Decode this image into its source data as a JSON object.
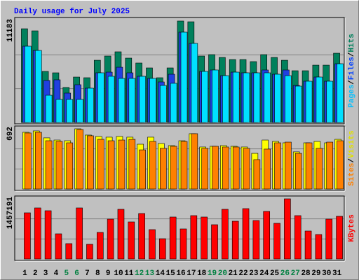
{
  "chart_data": {
    "type": "bar",
    "title": "Daily usage for July 2025",
    "title_color": "#0000ff",
    "categories": [
      "1",
      "2",
      "3",
      "4",
      "5",
      "6",
      "7",
      "8",
      "9",
      "10",
      "11",
      "12",
      "13",
      "14",
      "15",
      "16",
      "17",
      "18",
      "19",
      "20",
      "21",
      "22",
      "23",
      "24",
      "25",
      "26",
      "27",
      "28",
      "29",
      "30",
      "31"
    ],
    "category_colors": [
      "#000000",
      "#000000",
      "#000000",
      "#000000",
      "#008040",
      "#008040",
      "#000000",
      "#000000",
      "#000000",
      "#000000",
      "#000000",
      "#008040",
      "#008040",
      "#000000",
      "#000000",
      "#000000",
      "#000000",
      "#000000",
      "#008040",
      "#008040",
      "#000000",
      "#000000",
      "#000000",
      "#000000",
      "#000000",
      "#008040",
      "#008040",
      "#000000",
      "#000000",
      "#000000",
      "#000000"
    ],
    "separator": "/",
    "panels": [
      {
        "ylim": [
          0,
          11183
        ],
        "yticks": [
          11183
        ],
        "series": [
          {
            "name": "Hits",
            "color": "#00805c",
            "label_color": "#00805c",
            "values": [
              10330,
              10100,
              5630,
              5475,
              3860,
              5010,
              4935,
              6860,
              7325,
              7790,
              7095,
              6555,
              6015,
              4935,
              6015,
              11183,
              11100,
              7325,
              7480,
              7170,
              6940,
              6940,
              6710,
              7480,
              7170,
              6860,
              5705,
              5705,
              6320,
              6320,
              7635
            ]
          },
          {
            "name": "Files",
            "color": "#2040e0",
            "label_color": "#0040ff",
            "values": [
              8405,
              7940,
              4630,
              4705,
              3240,
              4165,
              3780,
              5475,
              5550,
              6090,
              5475,
              5090,
              4860,
              4470,
              5320,
              9950,
              8715,
              5630,
              5785,
              5165,
              5550,
              5475,
              5475,
              5785,
              5320,
              5785,
              4085,
              4550,
              5010,
              4550,
              6475
            ]
          },
          {
            "name": "Pages",
            "color": "#00e0ff",
            "label_color": "#00c0ff",
            "values": [
              8405,
              7940,
              3005,
              2545,
              2545,
              2545,
              3780,
              5475,
              5090,
              4860,
              4860,
              5090,
              4860,
              4085,
              4320,
              9950,
              8715,
              5630,
              5785,
              5165,
              5550,
              5475,
              5475,
              5475,
              5320,
              5165,
              4010,
              4550,
              5010,
              4550,
              6475
            ]
          }
        ]
      },
      {
        "ylim": [
          0,
          692
        ],
        "yticks": [
          692
        ],
        "series": [
          {
            "name": "Visits",
            "color": "#ffff00",
            "label_color": "#e0e000",
            "values": [
              652,
              668,
              588,
              563,
              555,
              692,
              620,
              604,
              596,
              604,
              596,
              515,
              596,
              523,
              499,
              555,
              636,
              483,
              491,
              499,
              491,
              483,
              410,
              563,
              547,
              531,
              427,
              531,
              547,
              531,
              571
            ]
          },
          {
            "name": "Sites",
            "color": "#ff8000",
            "label_color": "#ff8000",
            "values": [
              644,
              652,
              555,
              547,
              531,
              684,
              612,
              571,
              555,
              563,
              571,
              450,
              547,
              467,
              491,
              547,
              636,
              467,
              491,
              483,
              483,
              467,
              338,
              459,
              531,
              539,
              410,
              531,
              467,
              539,
              555
            ]
          }
        ]
      },
      {
        "ylim": [
          0,
          1457191
        ],
        "yticks": [
          1457191
        ],
        "series": [
          {
            "name": "KBytes",
            "color": "#ff0000",
            "label_color": "#ff0000",
            "values": [
              1118310,
              1236900,
              1169120,
              610000,
              372770,
              1236900,
              355830,
              643880,
              965810,
              1203020,
              898040,
              1101370,
              711650,
              491380,
              1016640,
              728600,
              1050530,
              1016640,
              830260,
              1203020,
              914980,
              1219960,
              931920,
              1152200,
              864150,
              1457191,
              1050530,
              677760,
              593050,
              965810,
              1033590
            ]
          }
        ]
      }
    ]
  }
}
